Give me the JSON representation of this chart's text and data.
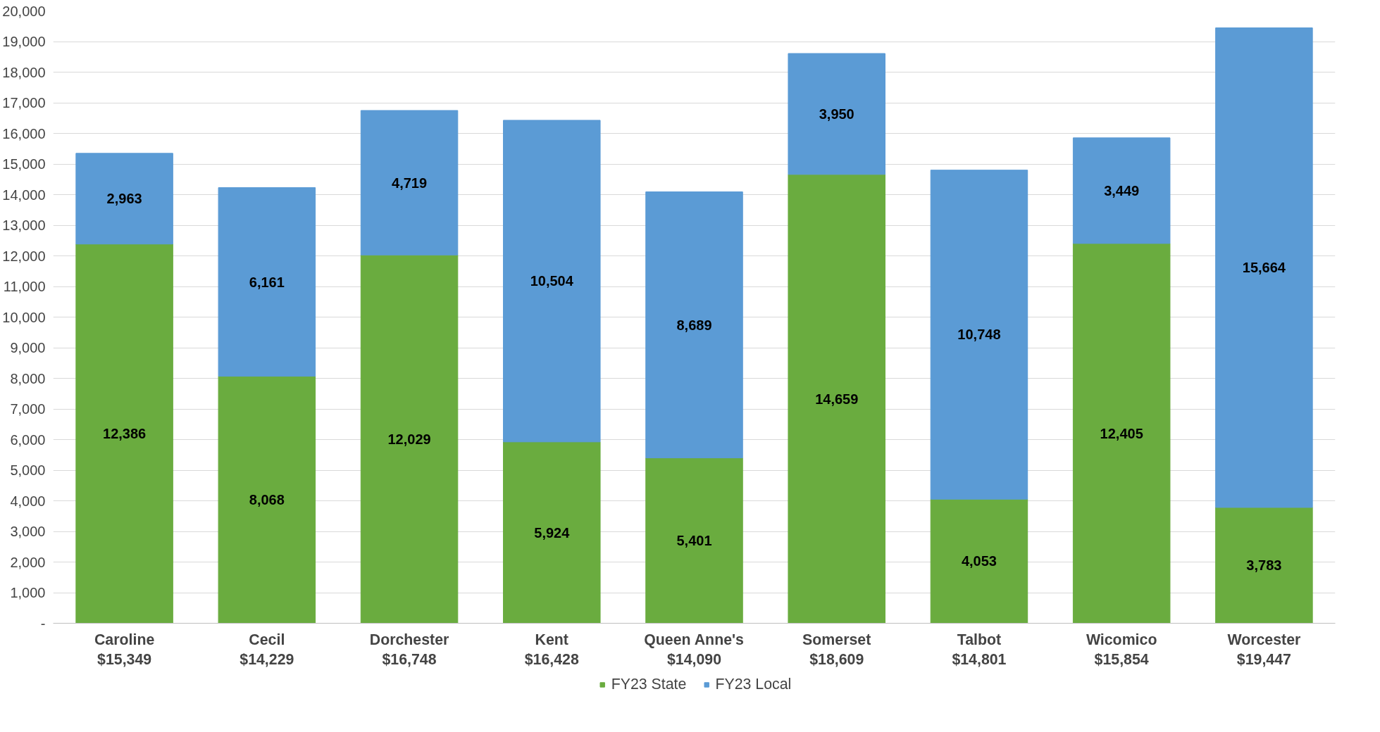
{
  "chart_data": {
    "type": "bar",
    "stacked": true,
    "categories": [
      "Caroline\n$15,349",
      "Cecil\n$14,229",
      "Dorchester\n$16,748",
      "Kent\n$16,428",
      "Queen Anne's\n$14,090",
      "Somerset\n$18,609",
      "Talbot\n$14,801",
      "Wicomico\n$15,854",
      "Worcester\n$19,447"
    ],
    "series": [
      {
        "name": "FY23 State",
        "color": "#6aac3f",
        "values": [
          12386,
          8068,
          12029,
          5924,
          5401,
          14659,
          4053,
          12405,
          3783
        ],
        "value_labels": [
          "12,386",
          "8,068",
          "12,029",
          "5,924",
          "5,401",
          "14,659",
          "4,053",
          "12,405",
          "3,783"
        ]
      },
      {
        "name": "FY23 Local",
        "color": "#5b9bd5",
        "values": [
          2963,
          6161,
          4719,
          10504,
          8689,
          3950,
          10748,
          3449,
          15664
        ],
        "value_labels": [
          "2,963",
          "6,161",
          "4,719",
          "10,504",
          "8,689",
          "3,950",
          "10,748",
          "3,449",
          "15,664"
        ]
      }
    ],
    "ylim": [
      0,
      20000
    ],
    "yticks": [
      {
        "value": 0,
        "label": "-"
      },
      {
        "value": 1000,
        "label": "1,000"
      },
      {
        "value": 2000,
        "label": "2,000"
      },
      {
        "value": 3000,
        "label": "3,000"
      },
      {
        "value": 4000,
        "label": "4,000"
      },
      {
        "value": 5000,
        "label": "5,000"
      },
      {
        "value": 6000,
        "label": "6,000"
      },
      {
        "value": 7000,
        "label": "7,000"
      },
      {
        "value": 8000,
        "label": "8,000"
      },
      {
        "value": 9000,
        "label": "9,000"
      },
      {
        "value": 10000,
        "label": "10,000"
      },
      {
        "value": 11000,
        "label": "11,000"
      },
      {
        "value": 12000,
        "label": "12,000"
      },
      {
        "value": 13000,
        "label": "13,000"
      },
      {
        "value": 14000,
        "label": "14,000"
      },
      {
        "value": 15000,
        "label": "15,000"
      },
      {
        "value": 16000,
        "label": "16,000"
      },
      {
        "value": 17000,
        "label": "17,000"
      },
      {
        "value": 18000,
        "label": "18,000"
      },
      {
        "value": 19000,
        "label": "19,000"
      },
      {
        "value": 20000,
        "label": "20,000"
      }
    ],
    "grid": "y",
    "legend": "bottom"
  }
}
